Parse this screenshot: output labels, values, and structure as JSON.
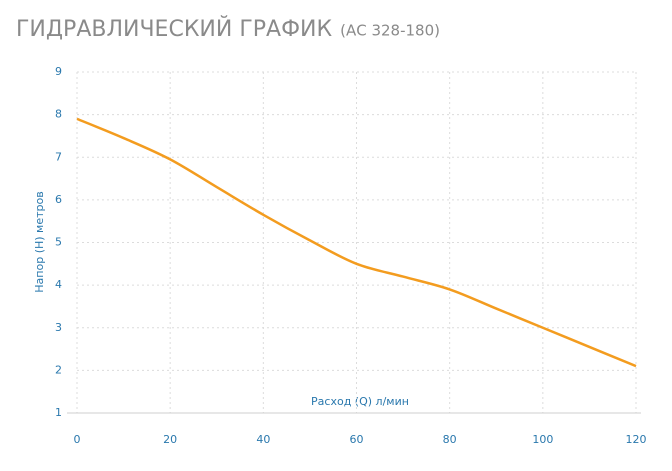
{
  "chart_data": {
    "type": "line",
    "title": "ГИДРАВЛИЧЕСКИЙ ГРАФИК",
    "subtitle": "(АС 328-180)",
    "x_label": "Расход (Q) л/мин",
    "y_label": "Напор (H) метров",
    "x": [
      0,
      10,
      20,
      30,
      40,
      50,
      60,
      70,
      80,
      90,
      100,
      110,
      120
    ],
    "series": [
      {
        "color": "#f39c1f",
        "values": [
          7.9,
          7.45,
          6.95,
          6.3,
          5.65,
          5.05,
          4.5,
          4.2,
          3.9,
          3.45,
          3.0,
          2.55,
          2.1
        ]
      }
    ],
    "xlim": [
      0,
      120
    ],
    "xticks": [
      0,
      20,
      40,
      60,
      80,
      100,
      120
    ],
    "ylim": [
      1,
      9
    ],
    "yticks": [
      1,
      2,
      3,
      4,
      5,
      6,
      7,
      8,
      9
    ],
    "grid": true
  }
}
